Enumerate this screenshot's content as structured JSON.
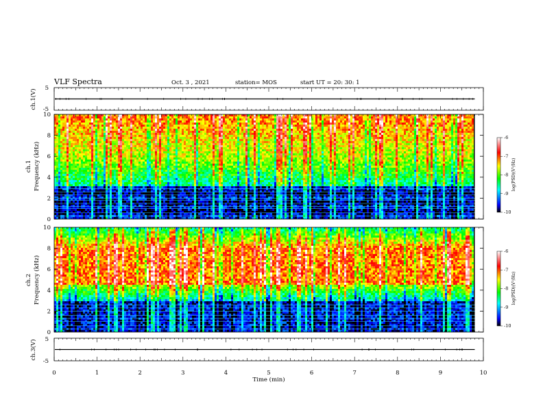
{
  "header": {
    "title": "VLF Spectra",
    "date": "Oct. 3 , 2021",
    "station": "station= MOS",
    "start": "start UT = 20: 30: 1"
  },
  "colors": {
    "colormap": [
      "#000000",
      "#0000ff",
      "#00ffff",
      "#00ff00",
      "#ffff00",
      "#ff0000",
      "#ffffff"
    ]
  },
  "chart_data": {
    "type": "heatmap",
    "x": {
      "label": "Time (min)",
      "range": [
        0,
        10
      ],
      "ticks": [
        "0",
        "1",
        "2",
        "3",
        "4",
        "5",
        "6",
        "7",
        "8",
        "9",
        "10"
      ]
    },
    "panels": [
      {
        "kind": "waveform",
        "ylabel": "ch.1(V)",
        "yrange": [
          -5,
          5
        ],
        "yticks": [
          "5",
          "-5"
        ],
        "baseline": 0
      },
      {
        "kind": "spectrogram",
        "ylabel": "Frequency (kHz)",
        "channel": "ch.1",
        "yrange": [
          0,
          10
        ],
        "yticks": [
          "0",
          "2",
          "4",
          "6",
          "8",
          "10"
        ],
        "peak_band_khz": [
          6,
          10
        ],
        "narrowband_lines_khz": [
          0.3,
          0.6,
          1.0,
          1.2,
          1.5,
          1.8,
          2.0,
          2.3,
          2.6,
          2.9
        ]
      },
      {
        "kind": "spectrogram",
        "ylabel": "Frequency (kHz)",
        "channel": "ch.2",
        "yrange": [
          0,
          10
        ],
        "yticks": [
          "0",
          "2",
          "4",
          "6",
          "8",
          "10"
        ],
        "peak_band_khz": [
          5,
          8
        ],
        "narrowband_lines_khz": [
          0.3,
          0.6,
          1.0,
          1.3,
          1.6,
          2.0,
          2.3,
          2.6
        ]
      },
      {
        "kind": "waveform",
        "ylabel": "ch.3(V)",
        "yrange": [
          -5,
          5
        ],
        "yticks": [
          "5",
          "-5"
        ],
        "baseline": 0
      }
    ],
    "colorbar": {
      "label": "log(PSD)(V²/Hz)",
      "range": [
        -10,
        -6
      ],
      "ticks": [
        "-6",
        "-7",
        "-8",
        "-9",
        "-10"
      ]
    },
    "data_end_min": 9.8
  }
}
